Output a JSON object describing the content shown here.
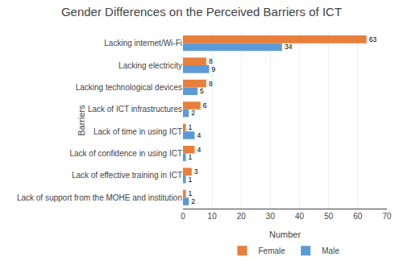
{
  "chart_data": {
    "type": "bar",
    "orientation": "horizontal",
    "title": "Gender Differences on the Perceived Barriers of ICT",
    "xlabel": "Number",
    "ylabel": "Barriers",
    "categories": [
      "Lacking internet/Wi-Fi",
      "Lacking electricity",
      "Lacking technological devices",
      "Lack of ICT infrastructures",
      "Lack of time in using ICT",
      "Lack of confidence in using ICT",
      "Lack of effective training in ICT",
      "Lack of support from the MOHE and institution"
    ],
    "series": [
      {
        "name": "Female",
        "color": "#E87F3A",
        "values": [
          63,
          8,
          8,
          6,
          1,
          4,
          3,
          1
        ]
      },
      {
        "name": "Male",
        "color": "#5B9BD5",
        "values": [
          34,
          9,
          5,
          2,
          4,
          1,
          1,
          2
        ]
      }
    ],
    "xlim": [
      0,
      70
    ],
    "xticks": [
      0,
      10,
      20,
      30,
      40,
      50,
      60,
      70
    ],
    "grid": true,
    "data_labels": true,
    "legend": "bottom"
  }
}
